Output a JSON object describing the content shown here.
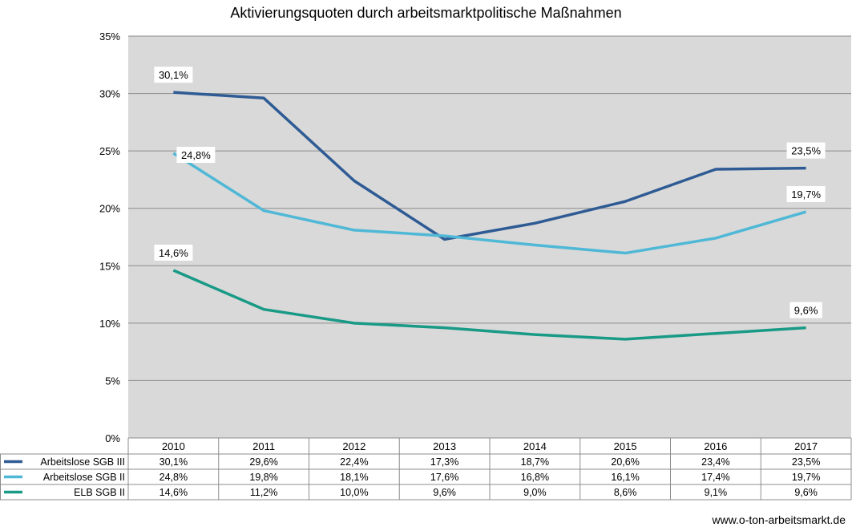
{
  "chart_data": {
    "type": "line",
    "title": "Aktivierungsquoten durch arbeitsmarktpolitische Maßnahmen",
    "categories": [
      "2010",
      "2011",
      "2012",
      "2013",
      "2014",
      "2015",
      "2016",
      "2017"
    ],
    "ylim": [
      0,
      35
    ],
    "y_ticks": [
      "0%",
      "5%",
      "10%",
      "15%",
      "20%",
      "25%",
      "30%",
      "35%"
    ],
    "grid": true,
    "legend": "data-table-left",
    "series": [
      {
        "name": "Arbeitslose SGB III",
        "color": "#2e5b94",
        "values": [
          30.1,
          29.6,
          22.4,
          17.3,
          18.7,
          20.6,
          23.4,
          23.5
        ],
        "table_values": [
          "30,1%",
          "29,6%",
          "22,4%",
          "17,3%",
          "18,7%",
          "20,6%",
          "23,4%",
          "23,5%"
        ],
        "point_labels": [
          {
            "index": 0,
            "text": "30,1%"
          },
          {
            "index": 7,
            "text": "23,5%"
          }
        ]
      },
      {
        "name": "Arbeitslose SGB II",
        "color": "#4fb8d6",
        "values": [
          24.8,
          19.8,
          18.1,
          17.6,
          16.8,
          16.1,
          17.4,
          19.7
        ],
        "table_values": [
          "24,8%",
          "19,8%",
          "18,1%",
          "17,6%",
          "16,8%",
          "16,1%",
          "17,4%",
          "19,7%"
        ],
        "point_labels": [
          {
            "index": 0,
            "text": "24,8%"
          },
          {
            "index": 7,
            "text": "19,7%"
          }
        ]
      },
      {
        "name": "ELB SGB II",
        "color": "#199a86",
        "values": [
          14.6,
          11.2,
          10.0,
          9.6,
          9.0,
          8.6,
          9.1,
          9.6
        ],
        "table_values": [
          "14,6%",
          "11,2%",
          "10,0%",
          "9,6%",
          "9,0%",
          "8,6%",
          "9,1%",
          "9,6%"
        ],
        "point_labels": [
          {
            "index": 0,
            "text": "14,6%"
          },
          {
            "index": 7,
            "text": "9,6%"
          }
        ]
      }
    ],
    "colors": {
      "plot_background": "#d9d9d9",
      "gridline": "#8c8c8c",
      "table_border": "#8c8c8c"
    }
  },
  "footer": {
    "source": "www.o-ton-arbeitsmarkt.de"
  }
}
